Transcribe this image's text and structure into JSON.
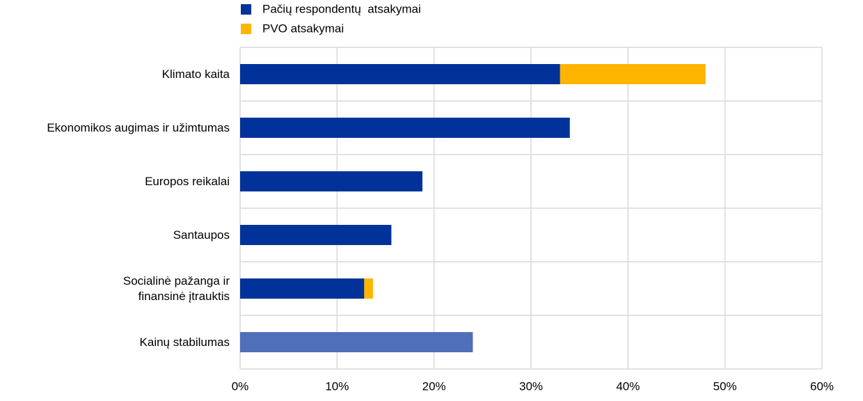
{
  "chart_data": {
    "type": "stacked-bar-horizontal",
    "categories": [
      "Klimato kaita",
      "Ekonomikos augimas ir užimtumas",
      "Europos reikalai",
      "Santaupos",
      "Socialinė pažanga ir\nfinansinė įtrauktis",
      "Kainų stabilumas"
    ],
    "series": [
      {
        "name": "Pačių respondentų  atsakymai",
        "color": "#003299",
        "colors": [
          "#003299",
          "#003299",
          "#003299",
          "#003299",
          "#003299",
          "#4f6fb9"
        ],
        "values": [
          33,
          34,
          18.8,
          15.6,
          12.8,
          24
        ]
      },
      {
        "name": "PVO atsakymai",
        "color": "#ffb400",
        "values": [
          15,
          0,
          0,
          0,
          0.9,
          0
        ]
      }
    ],
    "xlim": [
      0,
      60
    ],
    "xticks": [
      {
        "value": 0,
        "label": "0%"
      },
      {
        "value": 10,
        "label": "10%"
      },
      {
        "value": 20,
        "label": "20%"
      },
      {
        "value": 30,
        "label": "30%"
      },
      {
        "value": 40,
        "label": "40%"
      },
      {
        "value": 50,
        "label": "50%"
      },
      {
        "value": 60,
        "label": "60%"
      }
    ],
    "grid": true
  }
}
